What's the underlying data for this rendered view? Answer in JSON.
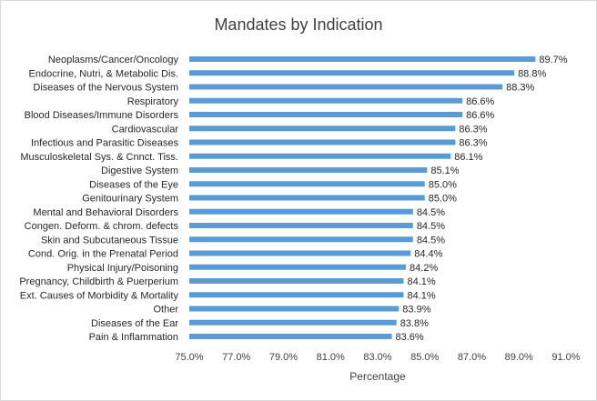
{
  "chart_data": {
    "type": "bar",
    "orientation": "horizontal",
    "title": "Mandates by Indication",
    "xlabel": "Percentage",
    "ylabel": "",
    "xlim": [
      75.0,
      91.0
    ],
    "xticks": [
      75.0,
      77.0,
      79.0,
      81.0,
      83.0,
      85.0,
      87.0,
      89.0,
      91.0
    ],
    "xtick_labels": [
      "75.0%",
      "77.0%",
      "79.0%",
      "81.0%",
      "83.0%",
      "85.0%",
      "87.0%",
      "89.0%",
      "91.0%"
    ],
    "grid": false,
    "legend": false,
    "bar_color": "#5b9bd5",
    "categories": [
      "Neoplasms/Cancer/Oncology",
      "Endocrine, Nutri, & Metabolic Dis.",
      "Diseases of the Nervous System",
      "Respiratory",
      "Blood Diseases/Immune Disorders",
      "Cardiovascular",
      "Infectious and Parasitic Diseases",
      "Musculoskeletal Sys. & Cnnct. Tiss.",
      "Digestive System",
      "Diseases of the Eye",
      "Genitourinary System",
      "Mental and Behavioral Disorders",
      "Congen. Deform. & chrom. defects",
      "Skin and Subcutaneous Tissue",
      "Cond. Orig. in the Prenatal Period",
      "Physical Injury/Poisoning",
      "Pregnancy, Childbirth & Puerperium",
      "Ext. Causes of Morbidity & Mortality",
      "Other",
      "Diseases of the Ear",
      "Pain & Inflammation"
    ],
    "values": [
      89.7,
      88.8,
      88.3,
      86.6,
      86.6,
      86.3,
      86.3,
      86.1,
      85.1,
      85.0,
      85.0,
      84.5,
      84.5,
      84.5,
      84.4,
      84.2,
      84.1,
      84.1,
      83.9,
      83.8,
      83.6
    ],
    "value_labels": [
      "89.7%",
      "88.8%",
      "88.3%",
      "86.6%",
      "86.6%",
      "86.3%",
      "86.3%",
      "86.1%",
      "85.1%",
      "85.0%",
      "85.0%",
      "84.5%",
      "84.5%",
      "84.5%",
      "84.4%",
      "84.2%",
      "84.1%",
      "84.1%",
      "83.9%",
      "83.8%",
      "83.6%"
    ]
  }
}
